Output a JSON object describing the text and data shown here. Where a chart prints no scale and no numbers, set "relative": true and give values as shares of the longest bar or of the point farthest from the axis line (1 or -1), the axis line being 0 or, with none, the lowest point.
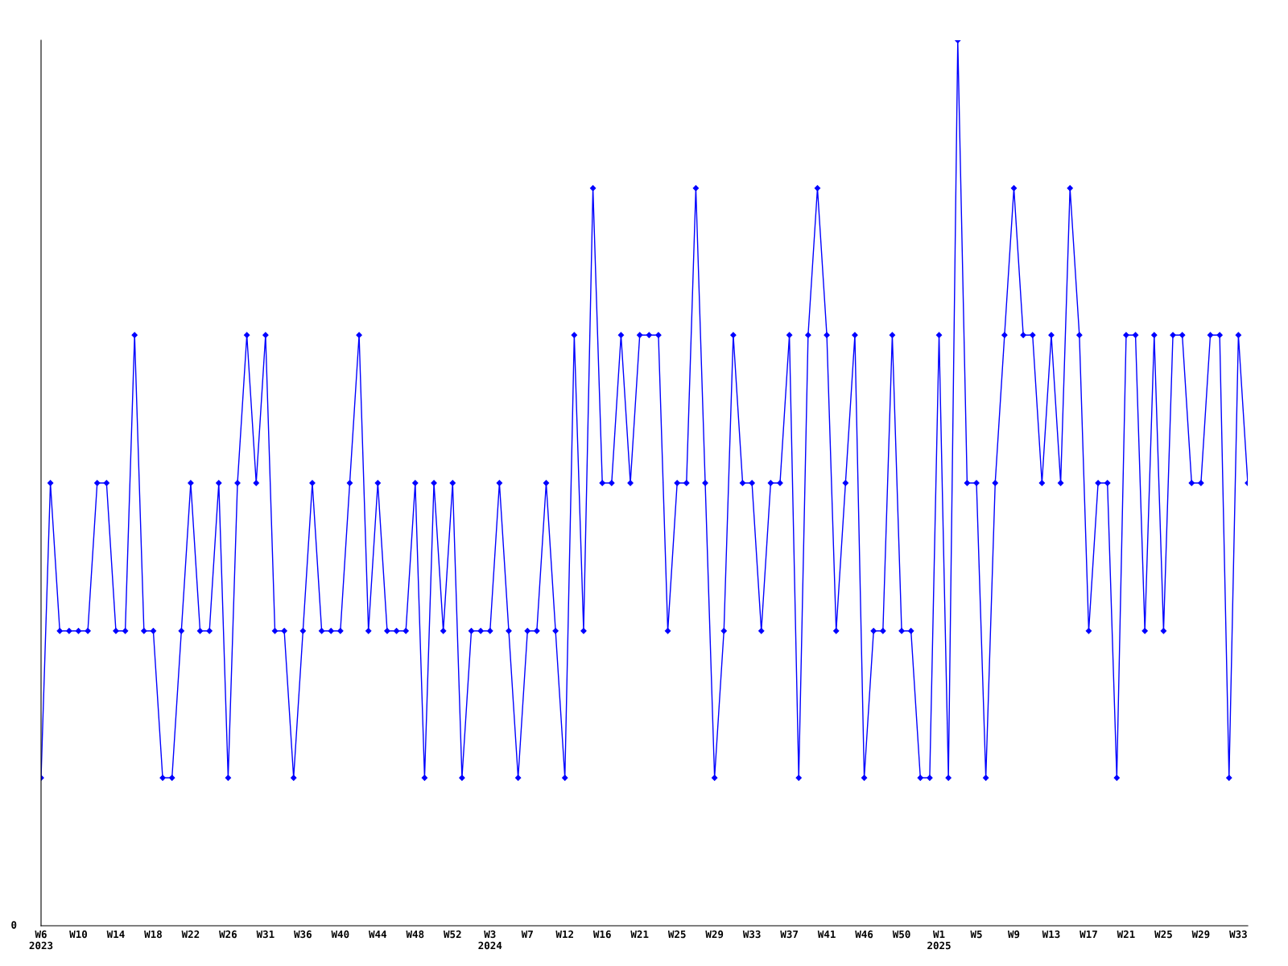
{
  "chart_data": {
    "type": "line",
    "relative": true,
    "marker": "diamond",
    "line_style": "solid",
    "grid": false,
    "legend": false,
    "annotations": [
      "0"
    ],
    "categories": [
      "W6\n2023",
      null,
      null,
      null,
      "W10",
      null,
      null,
      null,
      "W14",
      null,
      null,
      null,
      "W18",
      null,
      null,
      null,
      "W22",
      null,
      null,
      null,
      "W26",
      null,
      null,
      null,
      "W31",
      null,
      null,
      null,
      "W36",
      null,
      null,
      null,
      "W40",
      null,
      null,
      null,
      "W44",
      null,
      null,
      null,
      "W48",
      null,
      null,
      null,
      "W52",
      null,
      null,
      null,
      "W3\n2024",
      null,
      null,
      null,
      "W7",
      null,
      null,
      null,
      "W12",
      null,
      null,
      null,
      "W16",
      null,
      null,
      null,
      "W21",
      null,
      null,
      null,
      "W25",
      null,
      null,
      null,
      "W29",
      null,
      null,
      null,
      "W33",
      null,
      null,
      null,
      "W37",
      null,
      null,
      null,
      "W41",
      null,
      null,
      null,
      "W46",
      null,
      null,
      null,
      "W50",
      null,
      null,
      null,
      "W1\n2025",
      null,
      null,
      null,
      "W5",
      null,
      null,
      null,
      "W9",
      null,
      null,
      null,
      "W13",
      null,
      null,
      null,
      "W17",
      null,
      null,
      null,
      "W21",
      null,
      null,
      null,
      "W25",
      null,
      null,
      null,
      "W29",
      null,
      null,
      null,
      "W33",
      null
    ],
    "series": [
      {
        "color": "#0000ff",
        "values": [
          0.167,
          0.5,
          0.333,
          0.333,
          0.333,
          0.333,
          0.5,
          0.5,
          0.333,
          0.333,
          0.667,
          0.333,
          0.333,
          0.167,
          0.167,
          0.333,
          0.5,
          0.333,
          0.333,
          0.5,
          0.167,
          0.5,
          0.667,
          0.5,
          0.667,
          0.333,
          0.333,
          0.167,
          0.333,
          0.5,
          0.333,
          0.333,
          0.333,
          0.5,
          0.667,
          0.333,
          0.5,
          0.333,
          0.333,
          0.333,
          0.5,
          0.167,
          0.5,
          0.333,
          0.5,
          0.167,
          0.333,
          0.333,
          0.333,
          0.5,
          0.333,
          0.167,
          0.333,
          0.333,
          0.5,
          0.333,
          0.167,
          0.667,
          0.333,
          0.833,
          0.5,
          0.5,
          0.667,
          0.5,
          0.667,
          0.667,
          0.667,
          0.333,
          0.5,
          0.5,
          0.833,
          0.5,
          0.167,
          0.333,
          0.667,
          0.5,
          0.5,
          0.333,
          0.5,
          0.5,
          0.667,
          0.167,
          0.667,
          0.833,
          0.667,
          0.333,
          0.5,
          0.667,
          0.167,
          0.333,
          0.333,
          0.667,
          0.333,
          0.333,
          0.167,
          0.167,
          0.667,
          0.167,
          1,
          0.5,
          0.5,
          0.167,
          0.5,
          0.667,
          0.833,
          0.667,
          0.667,
          0.5,
          0.667,
          0.5,
          0.833,
          0.667,
          0.333,
          0.5,
          0.5,
          0.167,
          0.667,
          0.667,
          0.333,
          0.667,
          0.333,
          0.667,
          0.667,
          0.5,
          0.5,
          0.667,
          0.667,
          0.167,
          0.667,
          0.5
        ]
      }
    ]
  }
}
